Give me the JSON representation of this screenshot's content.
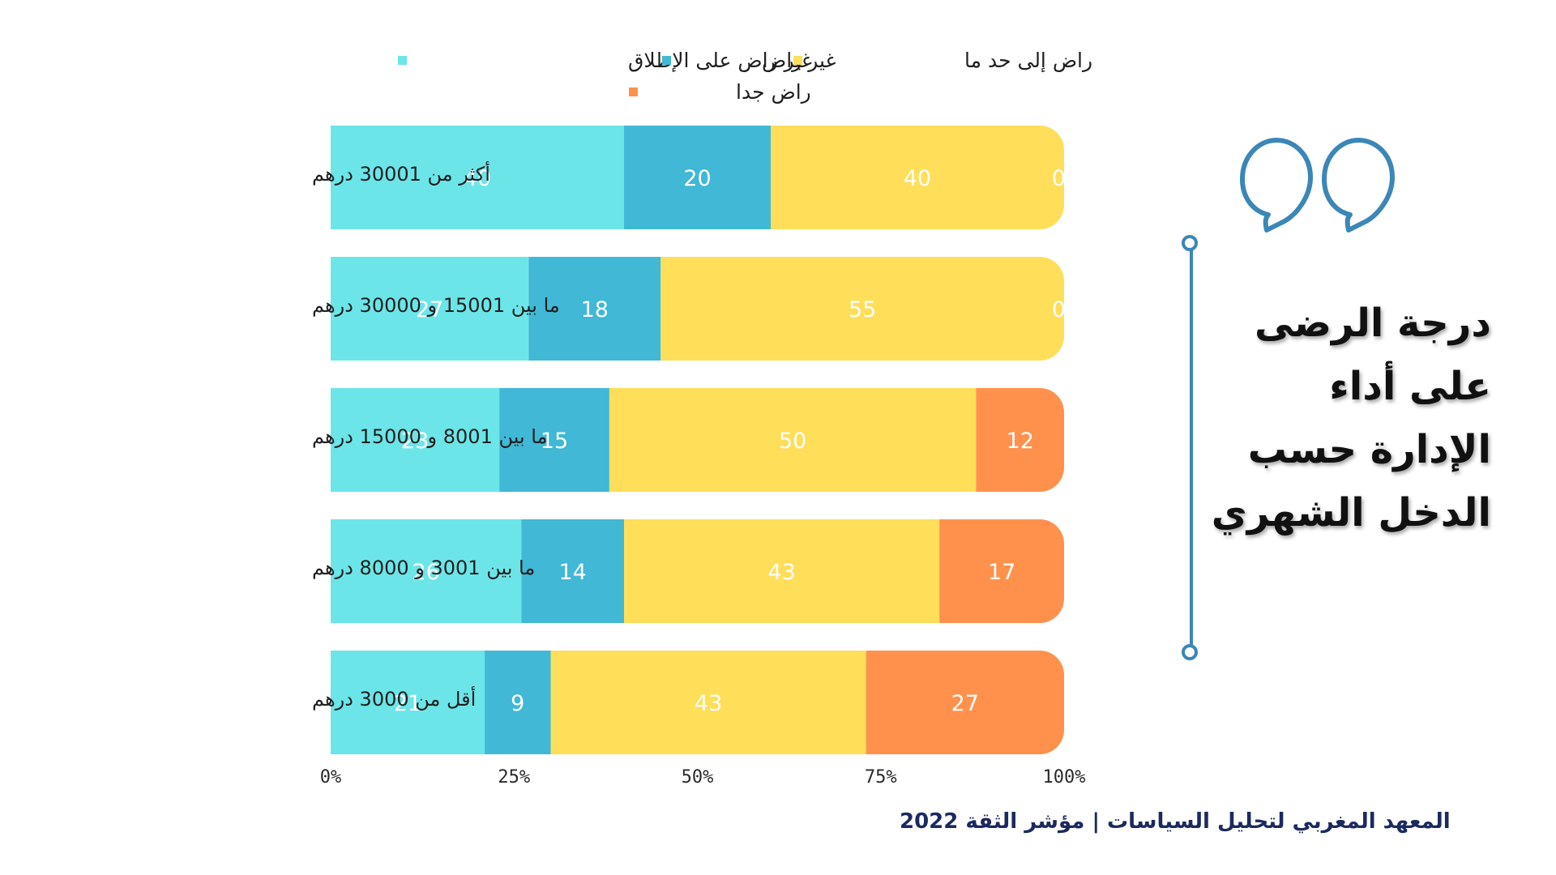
{
  "side_title": "درجة الرضى على أداء الإدارة حسب الدخل الشهري",
  "footer": "المعهد المغربي لتحليل السياسات  |  مؤشر الثقة 2022",
  "icons": {
    "quote": "quote-icon"
  },
  "chart_data": {
    "type": "bar",
    "orientation": "horizontal",
    "stacked": "percent",
    "categories": [
      "أكثر من  30001 درهم",
      "ما بين 15001 و 30000 درهم",
      "ما بين 8001 و 15000 درهم",
      "ما بين  3001 و 8000 درهم",
      "أقل من 3000 درهم"
    ],
    "series": [
      {
        "name": "غير راض على الإطلاق",
        "color": "#6ce5e8",
        "values": [
          40,
          27,
          23,
          26,
          21
        ]
      },
      {
        "name": "غير راض",
        "color": "#41b8d5",
        "values": [
          20,
          18,
          15,
          14,
          9
        ]
      },
      {
        "name": "راض إلى حد ما",
        "color": "#ffde59",
        "values": [
          40,
          55,
          50,
          43,
          43
        ]
      },
      {
        "name": "راض جدا",
        "color": "#ff914d",
        "values": [
          0,
          0,
          12,
          17,
          27
        ]
      }
    ],
    "x_ticks": [
      "0%",
      "25%",
      "50%",
      "75%",
      "100%"
    ],
    "xlim": [
      0,
      100
    ],
    "legend_position": "top"
  }
}
